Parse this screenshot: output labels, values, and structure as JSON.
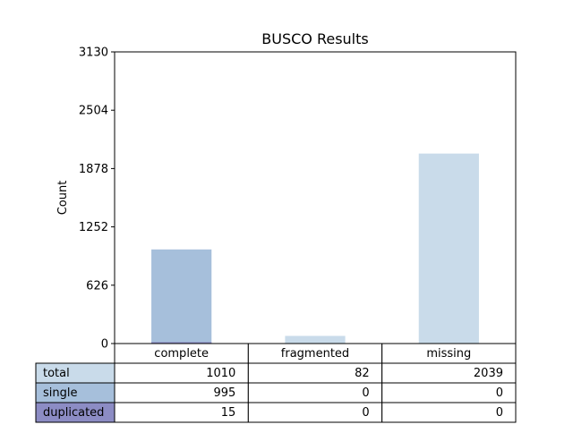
{
  "chart_data": {
    "type": "bar",
    "title": "BUSCO Results",
    "ylabel": "Count",
    "xlabel": "",
    "ylim": [
      0,
      3130
    ],
    "yticks": [
      0,
      626,
      1252,
      1878,
      2504,
      3130
    ],
    "categories": [
      "complete",
      "fragmented",
      "missing"
    ],
    "series": [
      {
        "name": "total",
        "values": [
          1010,
          82,
          2039
        ],
        "color": "#c9dbea"
      },
      {
        "name": "single",
        "values": [
          995,
          0,
          0
        ],
        "color": "#a6bfdb"
      },
      {
        "name": "duplicated",
        "values": [
          15,
          0,
          0
        ],
        "color": "#8c8cc4"
      }
    ],
    "bar_colors": [
      "#a6bfdb",
      "#c9dbea",
      "#c9dbea"
    ],
    "grid": false,
    "legend": "table below plot"
  }
}
